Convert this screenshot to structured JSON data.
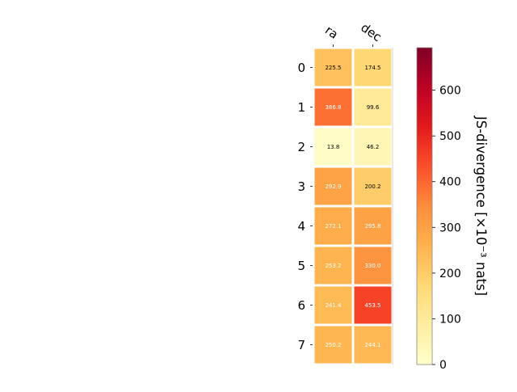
{
  "chart_data": {
    "type": "heatmap",
    "columns": [
      "ra",
      "dec"
    ],
    "rows": [
      "0",
      "1",
      "2",
      "3",
      "4",
      "5",
      "6",
      "7"
    ],
    "values": [
      [
        225.5,
        174.5
      ],
      [
        386.8,
        99.6
      ],
      [
        13.8,
        46.2
      ],
      [
        292.9,
        200.2
      ],
      [
        272.1,
        295.8
      ],
      [
        253.2,
        330.0
      ],
      [
        241.4,
        453.5
      ],
      [
        250.2,
        244.1
      ]
    ],
    "value_labels": [
      [
        "225.5",
        "174.5"
      ],
      [
        "386.8",
        "99.6"
      ],
      [
        "13.8",
        "46.2"
      ],
      [
        "292.9",
        "200.2"
      ],
      [
        "272.1",
        "295.8"
      ],
      [
        "253.2",
        "330.0"
      ],
      [
        "241.4",
        "453.5"
      ],
      [
        "250.2",
        "244.1"
      ]
    ],
    "colorbar": {
      "label": "JS-divergence [×10⁻³ nats]",
      "range": [
        0,
        693
      ],
      "ticks": [
        0,
        100,
        200,
        300,
        400,
        500,
        600
      ],
      "colormap": "YlOrRd"
    },
    "label_colors": {
      "dark": "#000000",
      "light": "#ffffff"
    },
    "grid": false
  }
}
